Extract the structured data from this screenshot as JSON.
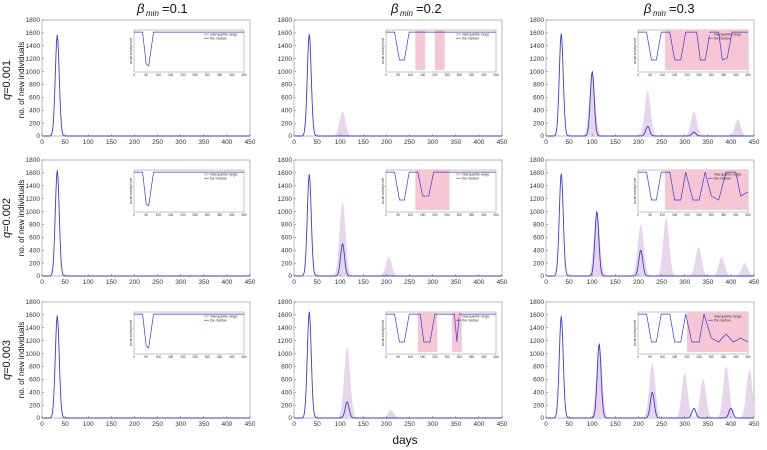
{
  "headers": {
    "beta_symbol": "β",
    "beta_sub": "min",
    "col_values": [
      "=0.1",
      "=0.2",
      "=0.3"
    ]
  },
  "row_labels": [
    {
      "q": "q",
      "value": "=0.001"
    },
    {
      "q": "q",
      "value": "=0.002"
    },
    {
      "q": "q",
      "value": "=0.003"
    }
  ],
  "y_axis_label": "no. of new individuals",
  "x_axis_label": "days",
  "inset_y_label": "social activity level",
  "legend": {
    "band": "interquartile range",
    "median": "the median"
  },
  "colors": {
    "median": "#3a3ad6",
    "band": "#e8d4ec",
    "inset_band": "#f6c6d4"
  },
  "chart_data": {
    "type": "line",
    "grid": "3x3 small multiples",
    "xlim": [
      0,
      450
    ],
    "ylim": [
      0,
      1800
    ],
    "x_ticks": [
      0,
      50,
      100,
      150,
      200,
      250,
      300,
      350,
      400,
      450
    ],
    "y_ticks": [
      0,
      200,
      400,
      600,
      800,
      1000,
      1200,
      1400,
      1600,
      1800
    ],
    "inset_x_ticks": [
      0,
      50,
      100,
      150,
      200,
      250,
      300,
      350,
      400,
      450
    ],
    "inset_xlim": [
      0,
      450
    ],
    "inset_ylim": [
      0,
      1
    ],
    "panels": [
      {
        "row": 0,
        "col": 0,
        "median_peaks": [
          [
            33,
            1570
          ]
        ],
        "band_peaks": [],
        "inset_median": [
          [
            0,
            1
          ],
          [
            35,
            1
          ],
          [
            50,
            0.2
          ],
          [
            60,
            0.15
          ],
          [
            80,
            1
          ],
          [
            450,
            1
          ]
        ],
        "inset_band": []
      },
      {
        "row": 0,
        "col": 1,
        "median_peaks": [
          [
            33,
            1580
          ]
        ],
        "band_peaks": [
          [
            105,
            380
          ]
        ],
        "inset_median": [
          [
            0,
            1
          ],
          [
            35,
            1
          ],
          [
            55,
            0.3
          ],
          [
            75,
            0.3
          ],
          [
            95,
            1
          ],
          [
            450,
            1
          ]
        ],
        "inset_band": [
          [
            120,
            160
          ],
          [
            200,
            240
          ]
        ]
      },
      {
        "row": 0,
        "col": 2,
        "median_peaks": [
          [
            33,
            1590
          ],
          [
            100,
            1000
          ],
          [
            220,
            150
          ],
          [
            320,
            60
          ]
        ],
        "band_peaks": [
          [
            100,
            1000
          ],
          [
            220,
            700
          ],
          [
            320,
            380
          ],
          [
            415,
            250
          ]
        ],
        "inset_median": [
          [
            0,
            1
          ],
          [
            35,
            1
          ],
          [
            55,
            0.3
          ],
          [
            75,
            0.3
          ],
          [
            95,
            1
          ],
          [
            130,
            1
          ],
          [
            150,
            0.3
          ],
          [
            175,
            0.3
          ],
          [
            195,
            1
          ],
          [
            240,
            1
          ],
          [
            255,
            0.3
          ],
          [
            275,
            0.3
          ],
          [
            295,
            1
          ],
          [
            330,
            1
          ],
          [
            345,
            0.3
          ],
          [
            365,
            0.35
          ],
          [
            385,
            1
          ],
          [
            450,
            1
          ]
        ],
        "inset_band": [
          [
            110,
            450
          ]
        ]
      },
      {
        "row": 1,
        "col": 0,
        "median_peaks": [
          [
            33,
            1640
          ]
        ],
        "band_peaks": [],
        "inset_median": [
          [
            0,
            1
          ],
          [
            35,
            1
          ],
          [
            50,
            0.2
          ],
          [
            60,
            0.15
          ],
          [
            80,
            1
          ],
          [
            450,
            1
          ]
        ],
        "inset_band": []
      },
      {
        "row": 1,
        "col": 1,
        "median_peaks": [
          [
            33,
            1580
          ],
          [
            105,
            500
          ]
        ],
        "band_peaks": [
          [
            105,
            1150
          ],
          [
            205,
            300
          ]
        ],
        "inset_median": [
          [
            0,
            1
          ],
          [
            35,
            1
          ],
          [
            55,
            0.3
          ],
          [
            75,
            0.3
          ],
          [
            95,
            1
          ],
          [
            130,
            1
          ],
          [
            150,
            0.4
          ],
          [
            175,
            0.4
          ],
          [
            195,
            1
          ],
          [
            450,
            1
          ]
        ],
        "inset_band": [
          [
            120,
            260
          ]
        ]
      },
      {
        "row": 1,
        "col": 2,
        "median_peaks": [
          [
            33,
            1590
          ],
          [
            110,
            1000
          ],
          [
            205,
            400
          ]
        ],
        "band_peaks": [
          [
            110,
            1000
          ],
          [
            205,
            800
          ],
          [
            260,
            900
          ],
          [
            330,
            450
          ],
          [
            380,
            300
          ],
          [
            430,
            200
          ]
        ],
        "inset_median": [
          [
            0,
            1
          ],
          [
            35,
            1
          ],
          [
            55,
            0.3
          ],
          [
            75,
            0.3
          ],
          [
            95,
            1
          ],
          [
            130,
            1
          ],
          [
            150,
            0.3
          ],
          [
            175,
            0.3
          ],
          [
            195,
            1
          ],
          [
            225,
            0.3
          ],
          [
            250,
            0.3
          ],
          [
            275,
            1
          ],
          [
            300,
            0.4
          ],
          [
            330,
            0.3
          ],
          [
            360,
            1
          ],
          [
            400,
            1
          ],
          [
            420,
            0.4
          ],
          [
            450,
            0.5
          ]
        ],
        "inset_band": [
          [
            110,
            450
          ]
        ]
      },
      {
        "row": 2,
        "col": 0,
        "median_peaks": [
          [
            33,
            1590
          ]
        ],
        "band_peaks": [],
        "inset_median": [
          [
            0,
            1
          ],
          [
            35,
            1
          ],
          [
            50,
            0.2
          ],
          [
            60,
            0.15
          ],
          [
            80,
            1
          ],
          [
            450,
            1
          ]
        ],
        "inset_band": []
      },
      {
        "row": 2,
        "col": 1,
        "median_peaks": [
          [
            33,
            1650
          ],
          [
            115,
            250
          ]
        ],
        "band_peaks": [
          [
            115,
            1100
          ],
          [
            210,
            120
          ]
        ],
        "inset_median": [
          [
            0,
            1
          ],
          [
            35,
            1
          ],
          [
            55,
            0.3
          ],
          [
            75,
            0.3
          ],
          [
            95,
            1
          ],
          [
            140,
            1
          ],
          [
            155,
            0.3
          ],
          [
            180,
            0.3
          ],
          [
            200,
            1
          ],
          [
            280,
            1
          ],
          [
            290,
            0.3
          ],
          [
            300,
            1
          ],
          [
            450,
            1
          ]
        ],
        "inset_band": [
          [
            130,
            210
          ],
          [
            270,
            310
          ]
        ]
      },
      {
        "row": 2,
        "col": 2,
        "median_peaks": [
          [
            33,
            1580
          ],
          [
            115,
            1150
          ],
          [
            230,
            400
          ],
          [
            320,
            150
          ],
          [
            400,
            150
          ]
        ],
        "band_peaks": [
          [
            115,
            1150
          ],
          [
            230,
            850
          ],
          [
            300,
            700
          ],
          [
            340,
            600
          ],
          [
            390,
            800
          ],
          [
            440,
            750
          ]
        ],
        "inset_median": [
          [
            0,
            1
          ],
          [
            35,
            1
          ],
          [
            55,
            0.3
          ],
          [
            75,
            0.3
          ],
          [
            95,
            1
          ],
          [
            130,
            1
          ],
          [
            150,
            0.3
          ],
          [
            175,
            0.3
          ],
          [
            195,
            1
          ],
          [
            220,
            0.3
          ],
          [
            250,
            0.3
          ],
          [
            270,
            1
          ],
          [
            300,
            0.4
          ],
          [
            330,
            0.3
          ],
          [
            360,
            0.5
          ],
          [
            390,
            0.3
          ],
          [
            420,
            0.4
          ],
          [
            450,
            0.3
          ]
        ],
        "inset_band": [
          [
            200,
            450
          ]
        ]
      }
    ]
  }
}
